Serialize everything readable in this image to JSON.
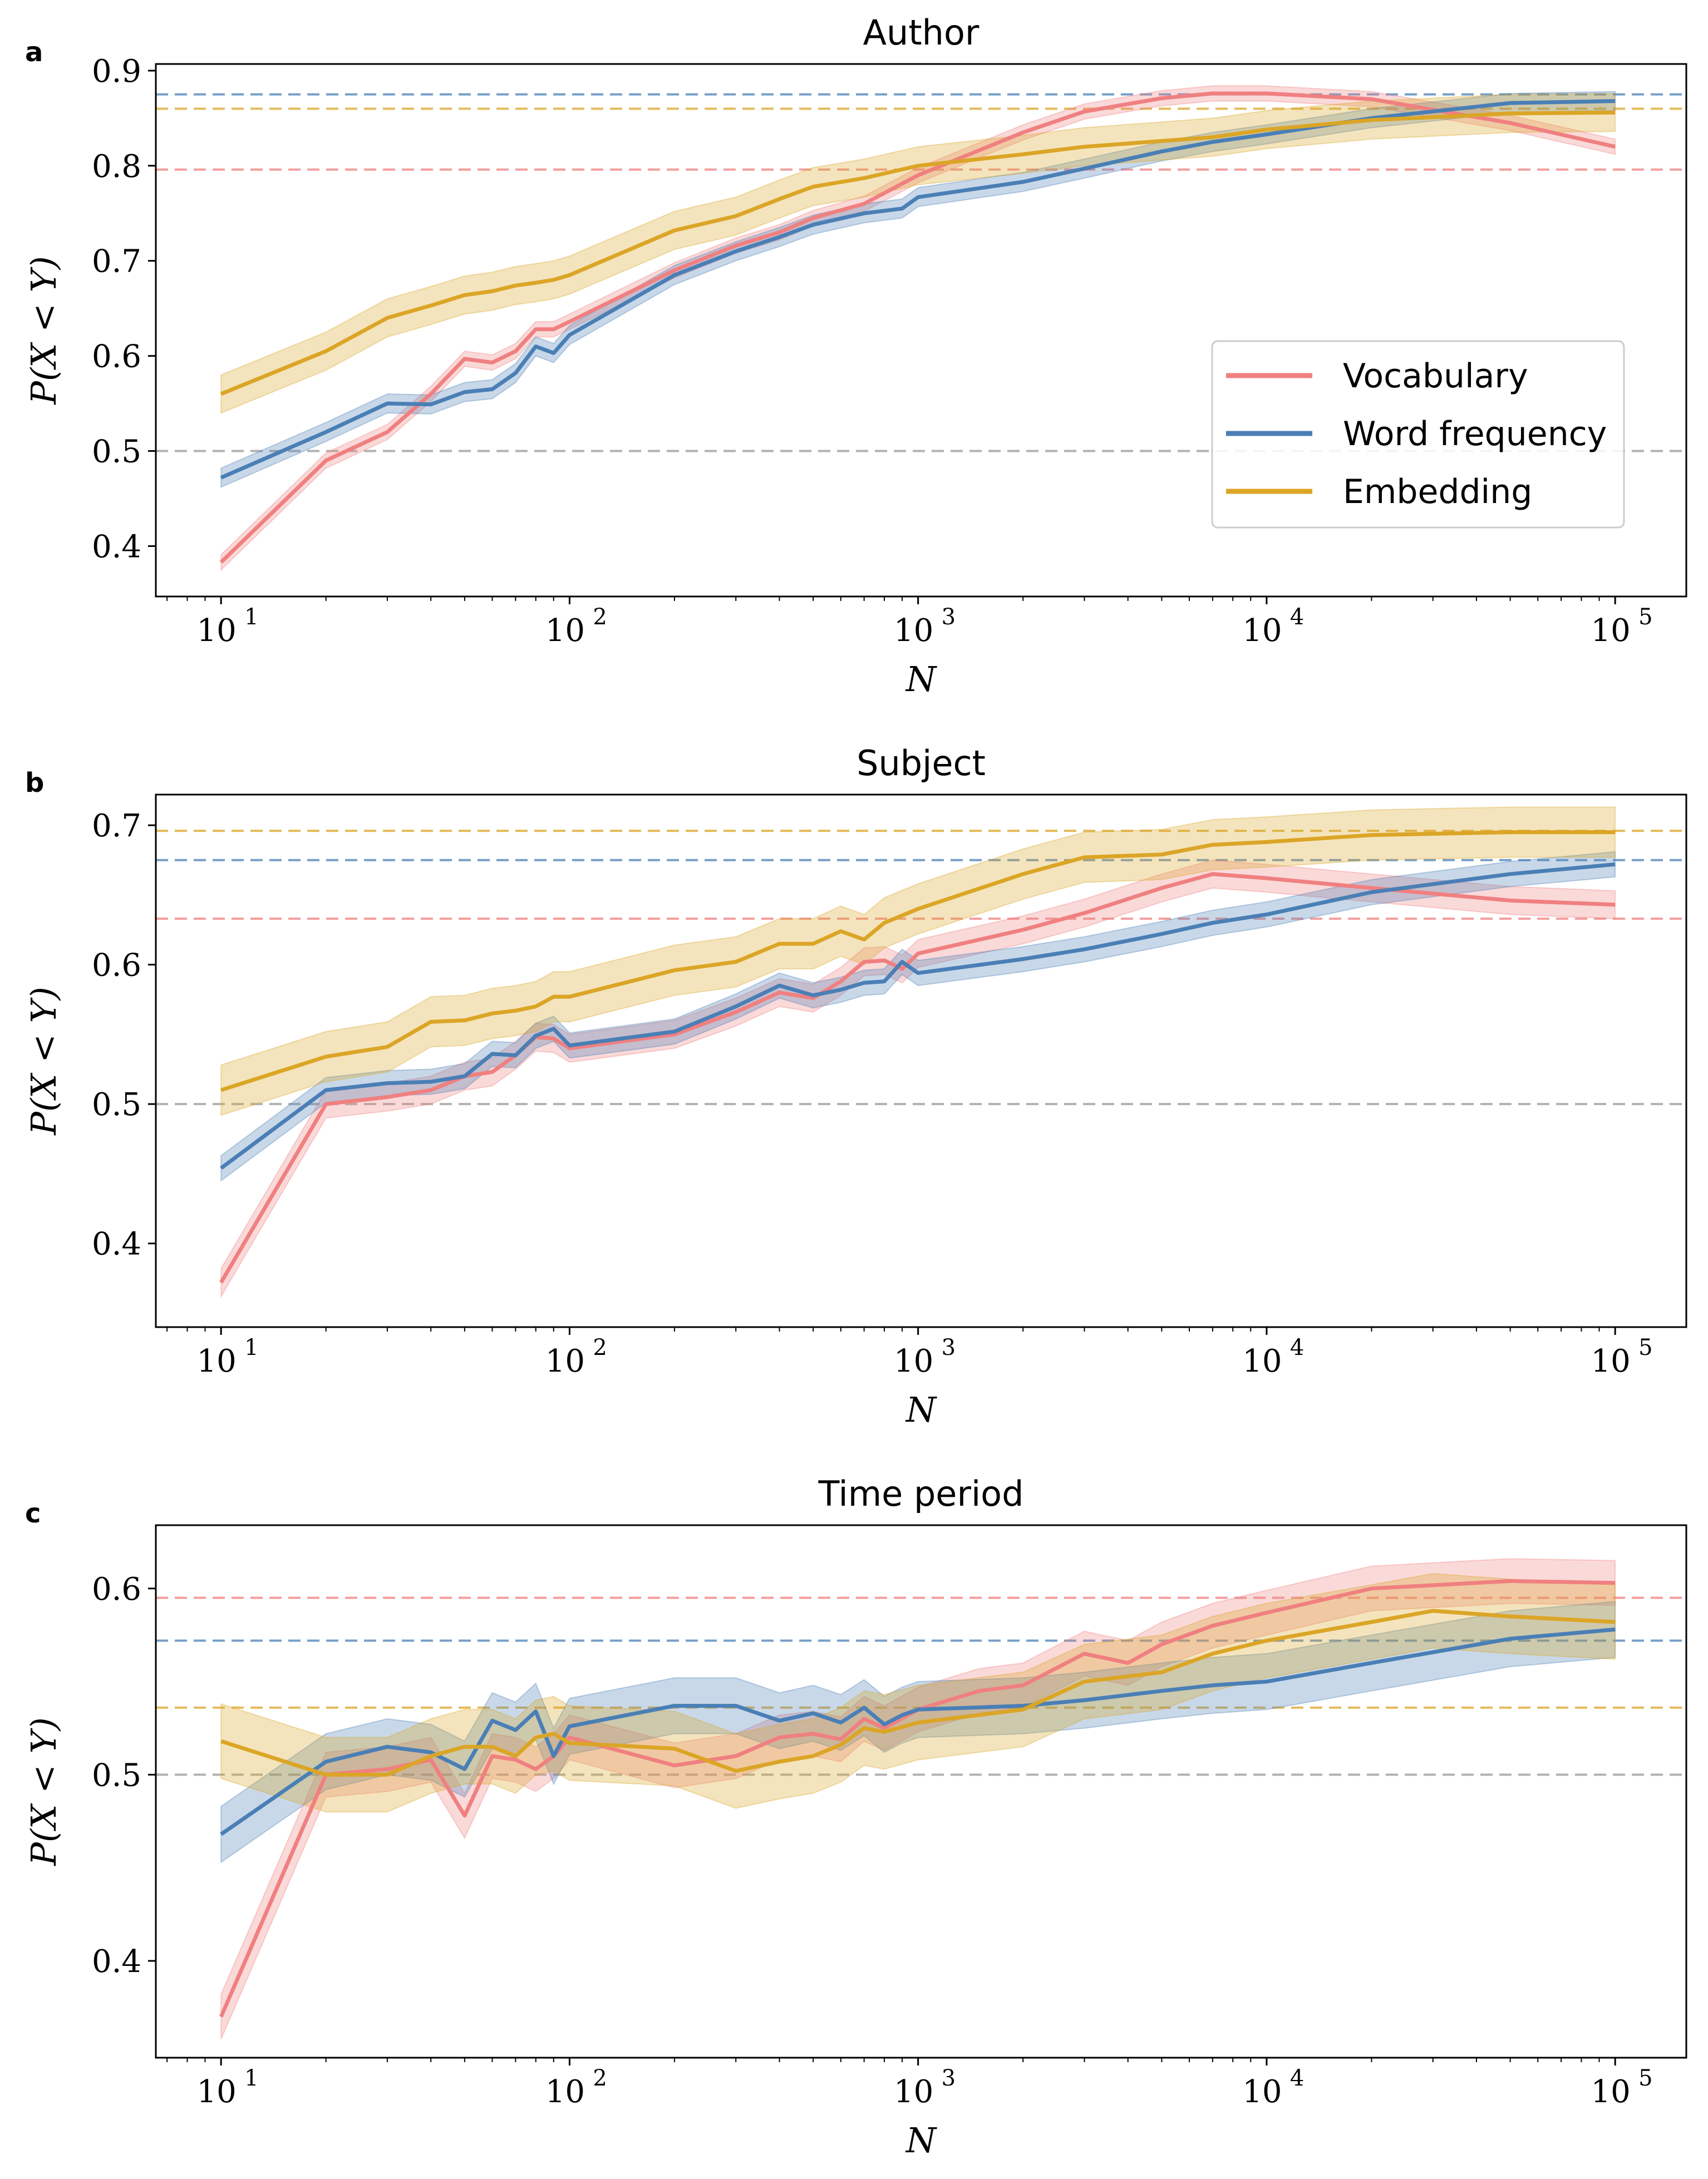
{
  "chart_data": [
    {
      "type": "line",
      "panel": "a",
      "title": "Author",
      "xlabel": "N",
      "ylabel": "P(X < Y)",
      "xscale": "log",
      "xlim": [
        6.5,
        160000
      ],
      "ylim": [
        0.347,
        0.907
      ],
      "xticks": [
        10,
        100,
        1000,
        10000,
        100000
      ],
      "xtick_labels": [
        "10",
        "10",
        "10",
        "10",
        "10"
      ],
      "xtick_exponents": [
        "1",
        "2",
        "3",
        "4",
        "5"
      ],
      "yticks": [
        0.4,
        0.5,
        0.6,
        0.7,
        0.8,
        0.9
      ],
      "ytick_labels": [
        "0.4",
        "0.5",
        "0.6",
        "0.7",
        "0.8",
        "0.9"
      ],
      "legend": {
        "location": "center-right",
        "entries": [
          "Vocabulary",
          "Word frequency",
          "Embedding"
        ]
      },
      "reference_lines": [
        {
          "series": "Word frequency",
          "y": 0.875,
          "color": "#4a7fb5"
        },
        {
          "series": "Embedding",
          "y": 0.86,
          "color": "#dba526"
        },
        {
          "series": "Vocabulary",
          "y": 0.796,
          "color": "#f08080"
        },
        {
          "series": "chance",
          "y": 0.5,
          "color": "#999999"
        }
      ],
      "series": [
        {
          "name": "Vocabulary",
          "color": "#f08080",
          "x": [
            10,
            20,
            30,
            40,
            50,
            60,
            70,
            80,
            90,
            100,
            200,
            300,
            400,
            500,
            700,
            1000,
            2000,
            3000,
            5000,
            7000,
            10000,
            20000,
            50000,
            100000
          ],
          "y": [
            0.383,
            0.49,
            0.52,
            0.56,
            0.597,
            0.593,
            0.605,
            0.628,
            0.628,
            0.636,
            0.69,
            0.716,
            0.73,
            0.745,
            0.76,
            0.79,
            0.835,
            0.857,
            0.871,
            0.876,
            0.876,
            0.87,
            0.845,
            0.82
          ],
          "band": 0.008
        },
        {
          "name": "Word frequency",
          "color": "#4a7fb5",
          "x": [
            10,
            20,
            30,
            40,
            50,
            60,
            70,
            80,
            90,
            100,
            200,
            300,
            400,
            500,
            700,
            900,
            1000,
            2000,
            3000,
            5000,
            7000,
            10000,
            20000,
            50000,
            100000
          ],
          "y": [
            0.472,
            0.52,
            0.55,
            0.549,
            0.562,
            0.565,
            0.582,
            0.61,
            0.603,
            0.622,
            0.685,
            0.71,
            0.725,
            0.738,
            0.75,
            0.755,
            0.767,
            0.783,
            0.797,
            0.815,
            0.825,
            0.833,
            0.85,
            0.866,
            0.868
          ],
          "band": 0.01
        },
        {
          "name": "Embedding",
          "color": "#dba526",
          "x": [
            10,
            20,
            30,
            40,
            50,
            60,
            70,
            80,
            90,
            100,
            200,
            300,
            400,
            500,
            700,
            1000,
            2000,
            3000,
            5000,
            7000,
            10000,
            20000,
            50000,
            100000
          ],
          "y": [
            0.56,
            0.605,
            0.64,
            0.653,
            0.664,
            0.668,
            0.674,
            0.677,
            0.68,
            0.685,
            0.732,
            0.747,
            0.765,
            0.778,
            0.787,
            0.8,
            0.812,
            0.82,
            0.826,
            0.83,
            0.838,
            0.848,
            0.855,
            0.856
          ],
          "band": 0.02
        }
      ]
    },
    {
      "type": "line",
      "panel": "b",
      "title": "Subject",
      "xlabel": "N",
      "ylabel": "P(X < Y)",
      "xscale": "log",
      "xlim": [
        6.5,
        160000
      ],
      "ylim": [
        0.34,
        0.722
      ],
      "xticks": [
        10,
        100,
        1000,
        10000,
        100000
      ],
      "xtick_labels": [
        "10",
        "10",
        "10",
        "10",
        "10"
      ],
      "xtick_exponents": [
        "1",
        "2",
        "3",
        "4",
        "5"
      ],
      "yticks": [
        0.4,
        0.5,
        0.6,
        0.7
      ],
      "ytick_labels": [
        "0.4",
        "0.5",
        "0.6",
        "0.7"
      ],
      "reference_lines": [
        {
          "series": "Embedding",
          "y": 0.696,
          "color": "#dba526"
        },
        {
          "series": "Word frequency",
          "y": 0.675,
          "color": "#4a7fb5"
        },
        {
          "series": "Vocabulary",
          "y": 0.633,
          "color": "#f08080"
        },
        {
          "series": "chance",
          "y": 0.5,
          "color": "#999999"
        }
      ],
      "series": [
        {
          "name": "Vocabulary",
          "color": "#f08080",
          "x": [
            10,
            20,
            30,
            40,
            50,
            60,
            70,
            80,
            90,
            100,
            200,
            300,
            400,
            500,
            600,
            700,
            800,
            900,
            1000,
            2000,
            3000,
            5000,
            7000,
            10000,
            20000,
            50000,
            100000
          ],
          "y": [
            0.372,
            0.5,
            0.505,
            0.51,
            0.52,
            0.523,
            0.535,
            0.548,
            0.547,
            0.54,
            0.55,
            0.566,
            0.58,
            0.576,
            0.588,
            0.602,
            0.603,
            0.597,
            0.608,
            0.625,
            0.637,
            0.655,
            0.665,
            0.662,
            0.655,
            0.646,
            0.643
          ],
          "band": 0.01
        },
        {
          "name": "Word frequency",
          "color": "#4a7fb5",
          "x": [
            10,
            20,
            30,
            40,
            50,
            60,
            70,
            80,
            90,
            100,
            200,
            300,
            400,
            500,
            600,
            700,
            800,
            900,
            1000,
            2000,
            3000,
            5000,
            7000,
            10000,
            20000,
            50000,
            100000
          ],
          "y": [
            0.454,
            0.51,
            0.515,
            0.516,
            0.52,
            0.536,
            0.535,
            0.549,
            0.554,
            0.542,
            0.552,
            0.57,
            0.585,
            0.578,
            0.582,
            0.587,
            0.588,
            0.602,
            0.594,
            0.604,
            0.611,
            0.622,
            0.63,
            0.636,
            0.652,
            0.665,
            0.672
          ],
          "band": 0.009
        },
        {
          "name": "Embedding",
          "color": "#dba526",
          "x": [
            10,
            20,
            30,
            40,
            50,
            60,
            70,
            80,
            90,
            100,
            200,
            300,
            400,
            500,
            600,
            700,
            800,
            1000,
            2000,
            3000,
            5000,
            7000,
            10000,
            20000,
            50000,
            100000
          ],
          "y": [
            0.51,
            0.534,
            0.541,
            0.559,
            0.56,
            0.565,
            0.567,
            0.57,
            0.577,
            0.577,
            0.596,
            0.602,
            0.615,
            0.615,
            0.624,
            0.618,
            0.63,
            0.64,
            0.665,
            0.677,
            0.679,
            0.686,
            0.688,
            0.693,
            0.695,
            0.695
          ],
          "band": 0.018
        }
      ]
    },
    {
      "type": "line",
      "panel": "c",
      "title": "Time period",
      "xlabel": "N",
      "ylabel": "P(X < Y)",
      "xscale": "log",
      "xlim": [
        6.5,
        160000
      ],
      "ylim": [
        0.348,
        0.634
      ],
      "xticks": [
        10,
        100,
        1000,
        10000,
        100000
      ],
      "xtick_labels": [
        "10",
        "10",
        "10",
        "10",
        "10"
      ],
      "xtick_exponents": [
        "1",
        "2",
        "3",
        "4",
        "5"
      ],
      "yticks": [
        0.4,
        0.5,
        0.6
      ],
      "ytick_labels": [
        "0.4",
        "0.5",
        "0.6"
      ],
      "reference_lines": [
        {
          "series": "Vocabulary",
          "y": 0.595,
          "color": "#f08080"
        },
        {
          "series": "Word frequency",
          "y": 0.572,
          "color": "#4a7fb5"
        },
        {
          "series": "Embedding",
          "y": 0.536,
          "color": "#dba526"
        },
        {
          "series": "chance",
          "y": 0.5,
          "color": "#999999"
        }
      ],
      "series": [
        {
          "name": "Vocabulary",
          "color": "#f08080",
          "x": [
            10,
            20,
            30,
            40,
            50,
            60,
            70,
            80,
            90,
            100,
            200,
            300,
            400,
            500,
            600,
            700,
            800,
            1000,
            1500,
            2000,
            3000,
            4000,
            5000,
            7000,
            10000,
            20000,
            50000,
            100000
          ],
          "y": [
            0.37,
            0.5,
            0.503,
            0.508,
            0.478,
            0.51,
            0.508,
            0.503,
            0.51,
            0.52,
            0.505,
            0.51,
            0.52,
            0.522,
            0.519,
            0.53,
            0.525,
            0.535,
            0.545,
            0.548,
            0.565,
            0.56,
            0.57,
            0.58,
            0.587,
            0.6,
            0.604,
            0.603
          ],
          "band": 0.012
        },
        {
          "name": "Word frequency",
          "color": "#4a7fb5",
          "x": [
            10,
            20,
            30,
            40,
            50,
            60,
            70,
            80,
            90,
            100,
            200,
            300,
            400,
            500,
            600,
            700,
            800,
            900,
            1000,
            2000,
            3000,
            5000,
            7000,
            10000,
            20000,
            50000,
            100000
          ],
          "y": [
            0.468,
            0.507,
            0.515,
            0.512,
            0.503,
            0.529,
            0.524,
            0.534,
            0.51,
            0.526,
            0.537,
            0.537,
            0.529,
            0.533,
            0.528,
            0.536,
            0.527,
            0.532,
            0.535,
            0.537,
            0.54,
            0.545,
            0.548,
            0.55,
            0.56,
            0.573,
            0.578
          ],
          "band": 0.015
        },
        {
          "name": "Embedding",
          "color": "#dba526",
          "x": [
            10,
            20,
            30,
            40,
            50,
            60,
            70,
            80,
            90,
            100,
            200,
            300,
            400,
            500,
            600,
            700,
            800,
            1000,
            2000,
            3000,
            5000,
            7000,
            10000,
            20000,
            30000,
            50000,
            100000
          ],
          "y": [
            0.518,
            0.5,
            0.5,
            0.51,
            0.515,
            0.515,
            0.51,
            0.52,
            0.522,
            0.517,
            0.514,
            0.502,
            0.507,
            0.51,
            0.516,
            0.525,
            0.523,
            0.528,
            0.535,
            0.55,
            0.555,
            0.565,
            0.572,
            0.582,
            0.588,
            0.585,
            0.582
          ],
          "band": 0.02
        }
      ]
    }
  ]
}
